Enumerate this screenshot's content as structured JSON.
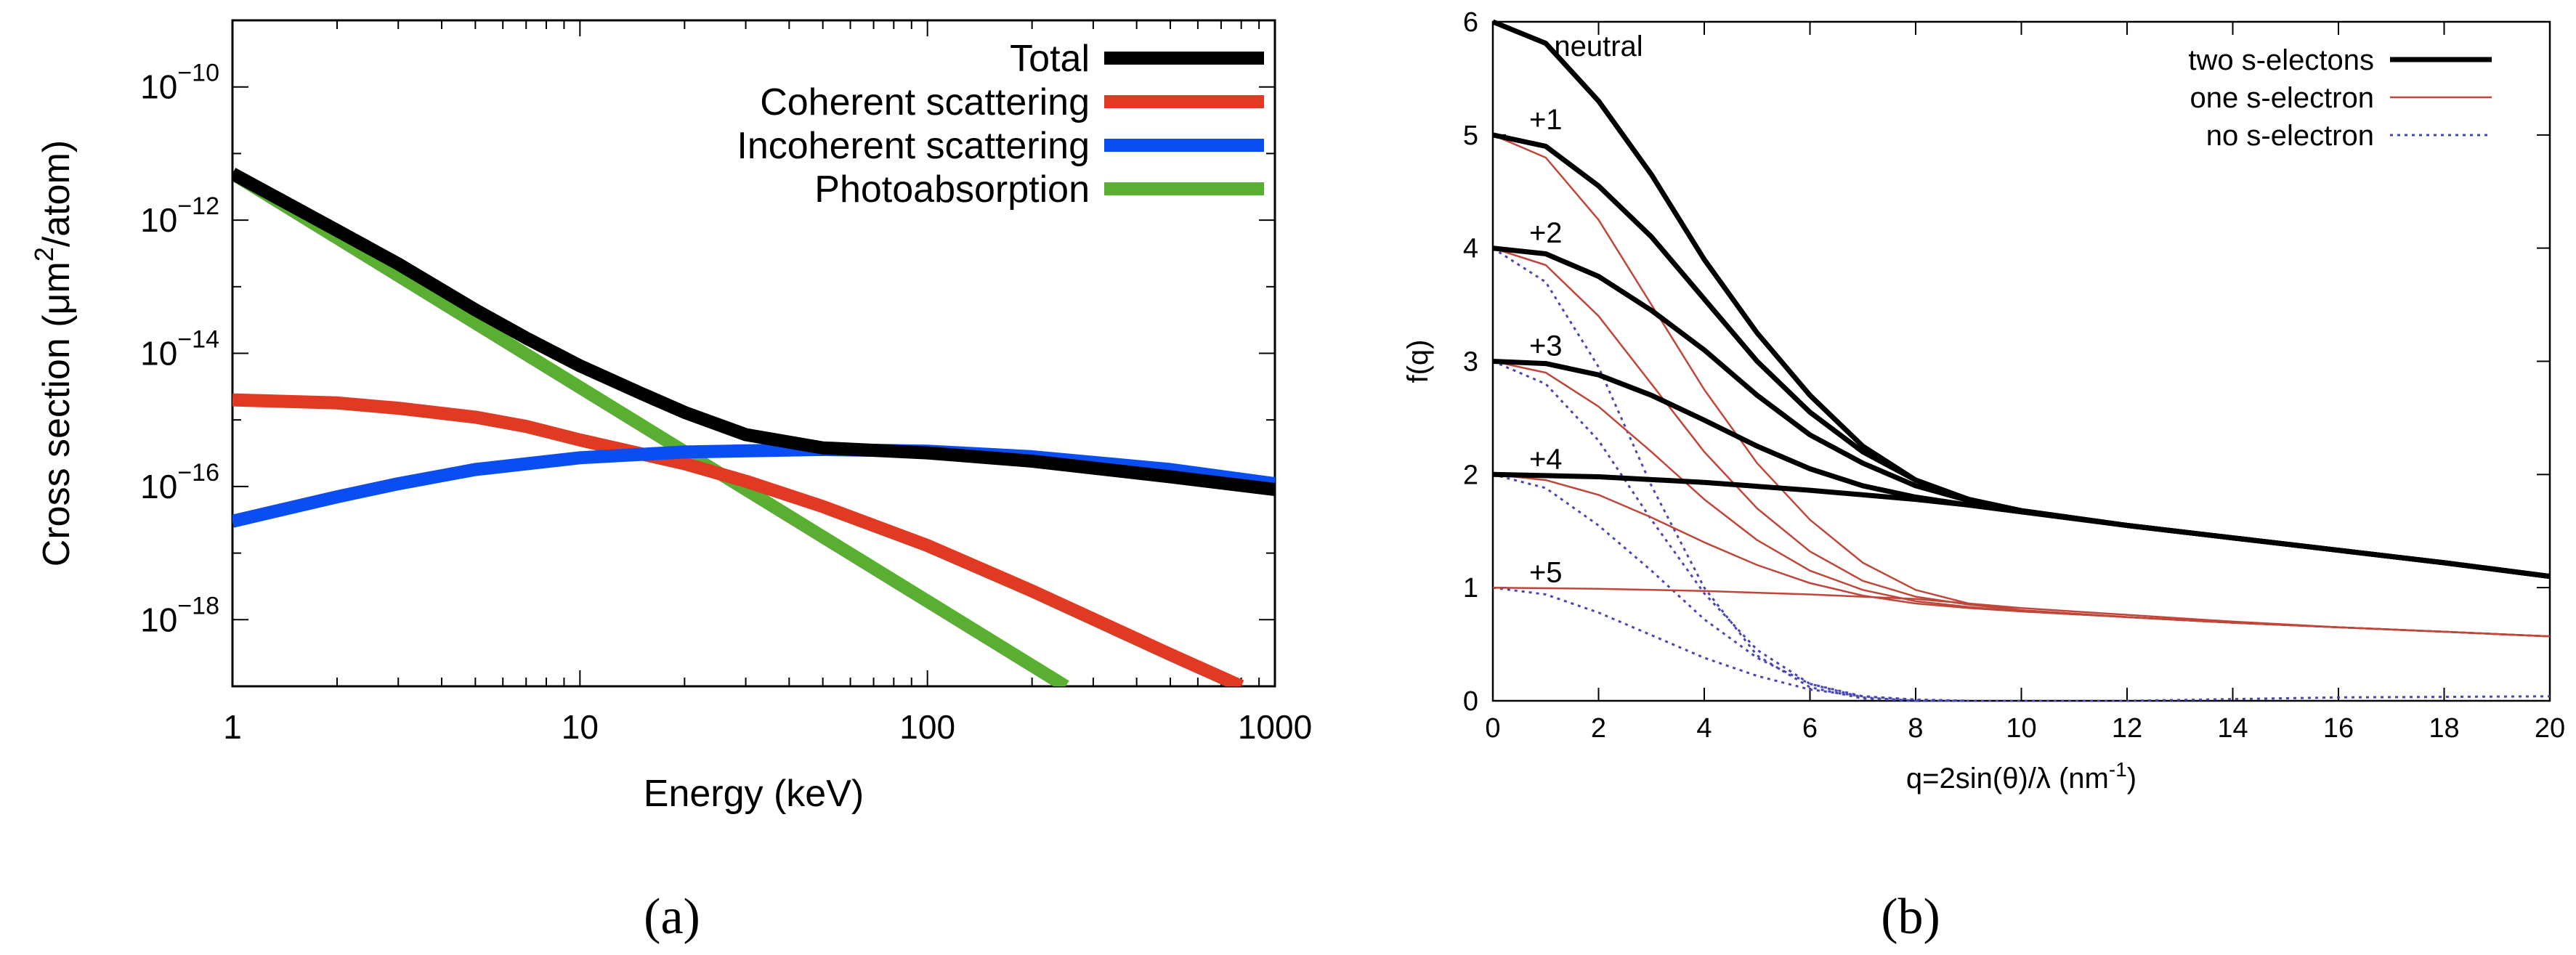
{
  "charts": [
    {
      "id": "a",
      "caption": "(a)",
      "chart_data": {
        "type": "line",
        "xscale": "log",
        "yscale": "log",
        "xlabel": "Energy (keV)",
        "ylabel_parts": [
          "Cross section (",
          "μm",
          "2",
          "/atom)"
        ],
        "xlim": [
          1,
          1000
        ],
        "ylim": [
          1e-19,
          1e-09
        ],
        "xticks": [
          1,
          10,
          100,
          1000
        ],
        "xtick_labels": [
          "1",
          "10",
          "100",
          "1000"
        ],
        "yticks": [
          1e-18,
          1e-16,
          1e-14,
          1e-12,
          1e-10
        ],
        "ytick_labels": [
          {
            "base": "10",
            "exp": "−18"
          },
          {
            "base": "10",
            "exp": "−16"
          },
          {
            "base": "10",
            "exp": "−14"
          },
          {
            "base": "10",
            "exp": "−12"
          },
          {
            "base": "10",
            "exp": "−10"
          }
        ],
        "legend_position": "top-right",
        "series": [
          {
            "name": "Total",
            "color": "#000000",
            "x": [
              1,
              2,
              3,
              5,
              7,
              10,
              15,
              20,
              30,
              50,
              100,
              200,
              500,
              1000
            ],
            "y": [
              5e-12,
              7e-13,
              2.2e-13,
              4.5e-14,
              1.7e-14,
              6.5e-15,
              2.5e-15,
              1.3e-15,
              6e-16,
              3.8e-16,
              3.2e-16,
              2.4e-16,
              1.4e-16,
              9e-17
            ]
          },
          {
            "name": "Coherent scattering",
            "color": "#e03a24",
            "x": [
              1,
              2,
              3,
              5,
              7,
              10,
              20,
              30,
              50,
              100,
              200,
              500,
              800
            ],
            "y": [
              2e-15,
              1.8e-15,
              1.5e-15,
              1.1e-15,
              8e-16,
              5e-16,
              2.2e-16,
              1.2e-16,
              5e-17,
              1.3e-17,
              2.7e-18,
              3e-19,
              1e-19
            ]
          },
          {
            "name": "Incoherent scattering",
            "color": "#0a4ef2",
            "x": [
              1,
              2,
              3,
              5,
              10,
              20,
              50,
              100,
              200,
              500,
              1000
            ],
            "y": [
              3e-17,
              7e-17,
              1.1e-16,
              1.8e-16,
              2.7e-16,
              3.3e-16,
              3.6e-16,
              3.4e-16,
              2.8e-16,
              1.8e-16,
              1.1e-16
            ]
          },
          {
            "name": "Photoabsorption",
            "color": "#5aaf33",
            "x": [
              1,
              250
            ],
            "y": [
              5e-12,
              1e-19
            ]
          }
        ]
      }
    },
    {
      "id": "b",
      "caption": "(b)",
      "chart_data": {
        "type": "line",
        "xlabel_parts": [
          "q=2sin(θ)/λ (nm",
          "-1",
          ")"
        ],
        "ylabel": "f(q)",
        "xlim": [
          0,
          20
        ],
        "ylim": [
          0,
          6
        ],
        "xticks": [
          0,
          2,
          4,
          6,
          8,
          10,
          12,
          14,
          16,
          18,
          20
        ],
        "yticks": [
          0,
          1,
          2,
          3,
          4,
          5,
          6
        ],
        "legend_position": "top-right",
        "legend": [
          {
            "name": "two s-electons",
            "color": "#000000",
            "style": "solid-thick"
          },
          {
            "name": "one s-electron",
            "color": "#c0463a",
            "style": "solid-thin"
          },
          {
            "name": "no s-electron",
            "color": "#4646b4",
            "style": "dotted"
          }
        ],
        "charge_labels": [
          {
            "text": "neutral",
            "x": 2.0,
            "y": 5.7
          },
          {
            "text": "+1",
            "x": 1.0,
            "y": 5.05
          },
          {
            "text": "+2",
            "x": 1.0,
            "y": 4.05
          },
          {
            "text": "+3",
            "x": 1.0,
            "y": 3.05
          },
          {
            "text": "+4",
            "x": 1.0,
            "y": 2.05
          },
          {
            "text": "+5",
            "x": 1.0,
            "y": 1.05
          }
        ],
        "series": [
          {
            "group": "two s-electons",
            "charge": "neutral",
            "color": "#000000",
            "style": "solid-thick",
            "x": [
              0,
              1,
              2,
              3,
              4,
              5,
              6,
              7,
              8,
              9,
              10,
              12,
              14,
              16,
              18,
              20
            ],
            "y": [
              6.0,
              5.81,
              5.3,
              4.65,
              3.9,
              3.25,
              2.7,
              2.25,
              1.95,
              1.78,
              1.68,
              1.55,
              1.44,
              1.33,
              1.22,
              1.1
            ]
          },
          {
            "group": "two s-electons",
            "charge": "+1",
            "color": "#000000",
            "style": "solid-thick",
            "x": [
              0,
              1,
              2,
              3,
              4,
              5,
              6,
              7,
              8,
              9,
              10,
              12,
              14,
              16,
              18,
              20
            ],
            "y": [
              5.0,
              4.9,
              4.55,
              4.1,
              3.55,
              3.0,
              2.55,
              2.2,
              1.95,
              1.78,
              1.68,
              1.55,
              1.44,
              1.33,
              1.22,
              1.1
            ]
          },
          {
            "group": "two s-electons",
            "charge": "+2",
            "color": "#000000",
            "style": "solid-thick",
            "x": [
              0,
              1,
              2,
              3,
              4,
              5,
              6,
              7,
              8,
              9,
              10,
              12,
              14,
              16,
              18,
              20
            ],
            "y": [
              4.0,
              3.95,
              3.75,
              3.45,
              3.1,
              2.7,
              2.35,
              2.1,
              1.9,
              1.77,
              1.68,
              1.55,
              1.44,
              1.33,
              1.22,
              1.1
            ]
          },
          {
            "group": "two s-electons",
            "charge": "+3",
            "color": "#000000",
            "style": "solid-thick",
            "x": [
              0,
              1,
              2,
              3,
              4,
              5,
              6,
              7,
              8,
              9,
              10,
              12,
              14,
              16,
              18,
              20
            ],
            "y": [
              3.0,
              2.98,
              2.88,
              2.7,
              2.48,
              2.25,
              2.05,
              1.9,
              1.8,
              1.73,
              1.67,
              1.55,
              1.44,
              1.33,
              1.22,
              1.1
            ]
          },
          {
            "group": "two s-electons",
            "charge": "+4",
            "color": "#000000",
            "style": "solid-thick",
            "x": [
              0,
              2,
              4,
              6,
              8,
              9,
              10,
              12,
              14,
              16,
              18,
              20
            ],
            "y": [
              2.0,
              1.98,
              1.93,
              1.86,
              1.78,
              1.73,
              1.67,
              1.55,
              1.44,
              1.33,
              1.22,
              1.1
            ]
          },
          {
            "group": "one s-electron",
            "charge": "+1",
            "color": "#c0463a",
            "style": "solid-thin",
            "x": [
              0,
              1,
              2,
              3,
              4,
              5,
              6,
              7,
              8,
              9,
              10,
              12,
              14,
              16,
              18,
              20
            ],
            "y": [
              5.0,
              4.8,
              4.25,
              3.5,
              2.75,
              2.1,
              1.6,
              1.22,
              0.98,
              0.86,
              0.8,
              0.74,
              0.69,
              0.65,
              0.61,
              0.57
            ]
          },
          {
            "group": "one s-electron",
            "charge": "+2",
            "color": "#c0463a",
            "style": "solid-thin",
            "x": [
              0,
              1,
              2,
              3,
              4,
              5,
              6,
              7,
              8,
              9,
              10,
              12,
              14,
              16,
              18,
              20
            ],
            "y": [
              4.0,
              3.85,
              3.4,
              2.8,
              2.2,
              1.7,
              1.32,
              1.06,
              0.92,
              0.85,
              0.8,
              0.74,
              0.69,
              0.65,
              0.61,
              0.57
            ]
          },
          {
            "group": "one s-electron",
            "charge": "+3",
            "color": "#c0463a",
            "style": "solid-thin",
            "x": [
              0,
              1,
              2,
              3,
              4,
              5,
              6,
              7,
              8,
              9,
              10,
              12,
              14,
              16,
              18,
              20
            ],
            "y": [
              3.0,
              2.9,
              2.6,
              2.2,
              1.78,
              1.42,
              1.15,
              0.98,
              0.88,
              0.83,
              0.79,
              0.74,
              0.69,
              0.65,
              0.61,
              0.57
            ]
          },
          {
            "group": "one s-electron",
            "charge": "+4",
            "color": "#c0463a",
            "style": "solid-thin",
            "x": [
              0,
              1,
              2,
              3,
              4,
              5,
              6,
              7,
              8,
              9,
              10,
              12,
              14,
              16,
              18,
              20
            ],
            "y": [
              2.0,
              1.95,
              1.82,
              1.62,
              1.4,
              1.2,
              1.04,
              0.93,
              0.86,
              0.82,
              0.79,
              0.74,
              0.69,
              0.65,
              0.61,
              0.57
            ]
          },
          {
            "group": "one s-electron",
            "charge": "+5",
            "color": "#c0463a",
            "style": "solid-thin",
            "x": [
              0,
              2,
              4,
              6,
              8,
              9,
              10,
              12,
              14,
              16,
              18,
              20
            ],
            "y": [
              1.0,
              0.99,
              0.97,
              0.94,
              0.9,
              0.86,
              0.82,
              0.76,
              0.7,
              0.65,
              0.61,
              0.57
            ]
          },
          {
            "group": "no s-electron",
            "charge": "+2",
            "color": "#4646b4",
            "style": "dotted",
            "x": [
              0,
              1,
              2,
              3,
              4,
              5,
              6,
              7,
              8
            ],
            "y": [
              4.0,
              3.7,
              2.95,
              1.9,
              1.0,
              0.4,
              0.12,
              0.02,
              0.0
            ]
          },
          {
            "group": "no s-electron",
            "charge": "+3",
            "color": "#4646b4",
            "style": "dotted",
            "x": [
              0,
              1,
              2,
              3,
              4,
              5,
              6,
              7,
              8
            ],
            "y": [
              3.0,
              2.8,
              2.3,
              1.6,
              0.95,
              0.45,
              0.15,
              0.03,
              0.0
            ]
          },
          {
            "group": "no s-electron",
            "charge": "+4",
            "color": "#4646b4",
            "style": "dotted",
            "x": [
              0,
              1,
              2,
              3,
              4,
              5,
              6,
              7,
              8,
              9
            ],
            "y": [
              2.0,
              1.88,
              1.55,
              1.15,
              0.72,
              0.38,
              0.15,
              0.04,
              0.01,
              0.0
            ]
          },
          {
            "group": "no s-electron",
            "charge": "+5",
            "color": "#4646b4",
            "style": "dotted",
            "x": [
              0,
              1,
              2,
              3,
              4,
              5,
              6,
              7,
              8,
              9
            ],
            "y": [
              1.0,
              0.94,
              0.78,
              0.58,
              0.38,
              0.22,
              0.1,
              0.04,
              0.01,
              0.0
            ]
          },
          {
            "group": "no s-electron",
            "charge": "tail",
            "color": "#4646b4",
            "style": "dotted",
            "x": [
              8,
              9,
              12,
              16,
              20
            ],
            "y": [
              0.0,
              0.0,
              0.0,
              0.03,
              0.04
            ]
          }
        ]
      }
    }
  ]
}
